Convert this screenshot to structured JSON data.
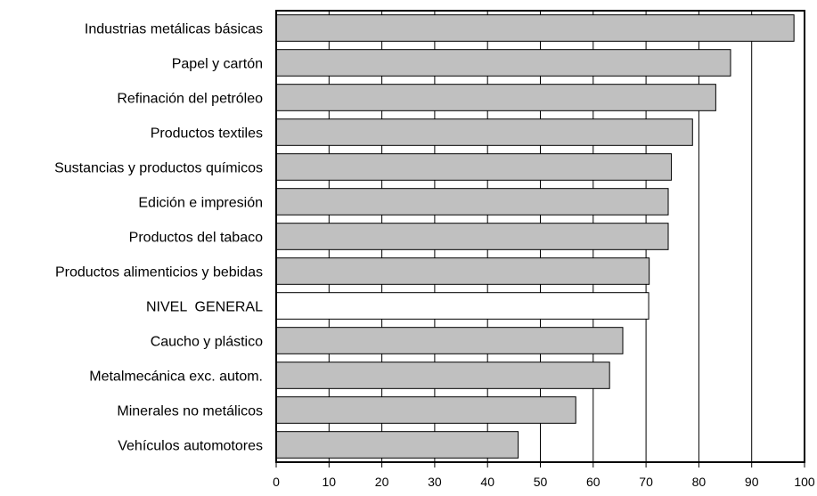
{
  "chart_data": {
    "type": "bar",
    "orientation": "horizontal",
    "categories": [
      "Industrias metálicas básicas",
      "Papel y cartón",
      "Refinación del petróleo",
      "Productos textiles",
      "Sustancias y productos químicos",
      "Edición e impresión",
      "Productos del tabaco",
      "Productos alimenticios y bebidas",
      "NIVEL  GENERAL",
      "Caucho y plástico",
      "Metalmecánica exc. autom.",
      "Minerales no metálicos",
      "Vehículos automotores"
    ],
    "values": [
      98,
      86,
      83.2,
      78.8,
      74.8,
      74.2,
      74.2,
      70.6,
      70.5,
      65.6,
      63.1,
      56.7,
      45.8
    ],
    "highlight_category": "NIVEL  GENERAL",
    "xlim": [
      0,
      100
    ],
    "xticks": [
      "0",
      "10",
      "20",
      "30",
      "40",
      "50",
      "60",
      "70",
      "80",
      "90",
      "100"
    ],
    "grid": "vertical",
    "colors": {
      "bar": "#c0c0c0",
      "highlight_bar": "#ffffff",
      "outline": "#000000",
      "grid": "#000000"
    }
  }
}
